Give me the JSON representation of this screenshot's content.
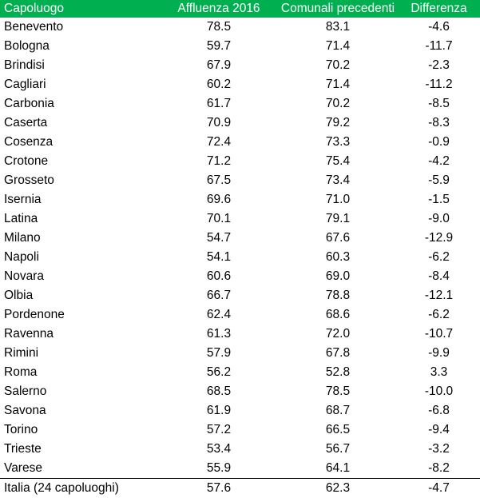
{
  "table": {
    "headers": [
      "Capoluogo",
      "Affluenza 2016",
      "Comunali precedenti",
      "Differenza"
    ],
    "rows": [
      [
        "Benevento",
        "78.5",
        "83.1",
        "-4.6"
      ],
      [
        "Bologna",
        "59.7",
        "71.4",
        "-11.7"
      ],
      [
        "Brindisi",
        "67.9",
        "70.2",
        "-2.3"
      ],
      [
        "Cagliari",
        "60.2",
        "71.4",
        "-11.2"
      ],
      [
        "Carbonia",
        "61.7",
        "70.2",
        "-8.5"
      ],
      [
        "Caserta",
        "70.9",
        "79.2",
        "-8.3"
      ],
      [
        "Cosenza",
        "72.4",
        "73.3",
        "-0.9"
      ],
      [
        "Crotone",
        "71.2",
        "75.4",
        "-4.2"
      ],
      [
        "Grosseto",
        "67.5",
        "73.4",
        "-5.9"
      ],
      [
        "Isernia",
        "69.6",
        "71.0",
        "-1.5"
      ],
      [
        "Latina",
        "70.1",
        "79.1",
        "-9.0"
      ],
      [
        "Milano",
        "54.7",
        "67.6",
        "-12.9"
      ],
      [
        "Napoli",
        "54.1",
        "60.3",
        "-6.2"
      ],
      [
        "Novara",
        "60.6",
        "69.0",
        "-8.4"
      ],
      [
        "Olbia",
        "66.7",
        "78.8",
        "-12.1"
      ],
      [
        "Pordenone",
        "62.4",
        "68.6",
        "-6.2"
      ],
      [
        "Ravenna",
        "61.3",
        "72.0",
        "-10.7"
      ],
      [
        "Rimini",
        "57.9",
        "67.8",
        "-9.9"
      ],
      [
        "Roma",
        "56.2",
        "52.8",
        "3.3"
      ],
      [
        "Salerno",
        "68.5",
        "78.5",
        "-10.0"
      ],
      [
        "Savona",
        "61.9",
        "68.7",
        "-6.8"
      ],
      [
        "Torino",
        "57.2",
        "66.5",
        "-9.4"
      ],
      [
        "Trieste",
        "53.4",
        "56.7",
        "-3.2"
      ],
      [
        "Varese",
        "55.9",
        "64.1",
        "-8.2"
      ]
    ],
    "total": [
      "Italia (24 capoluoghi)",
      "57.6",
      "62.3",
      "-4.7"
    ]
  }
}
